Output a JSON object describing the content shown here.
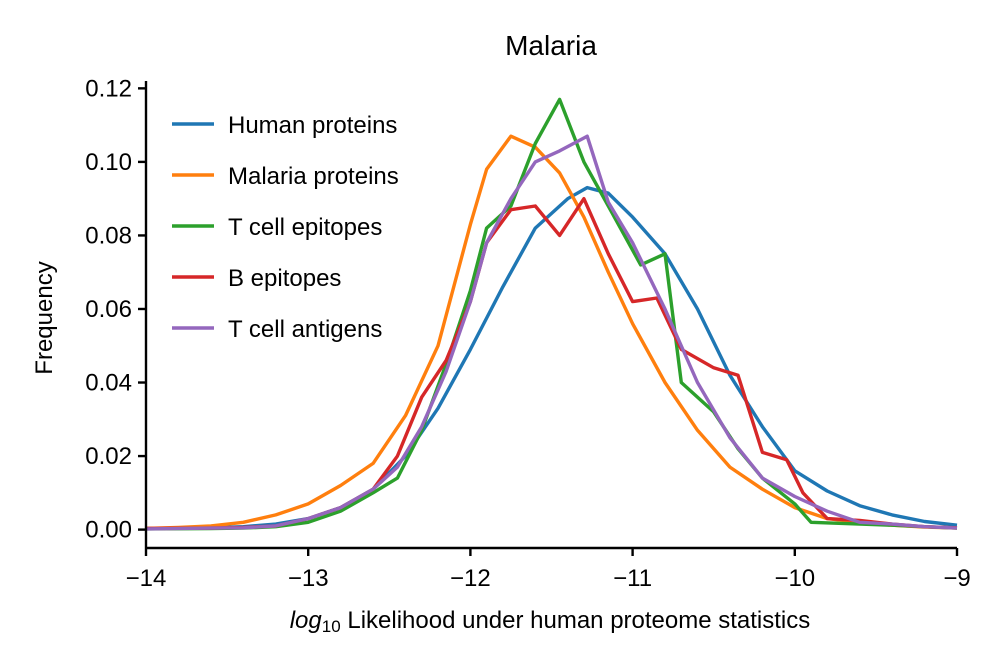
{
  "chart_data": {
    "type": "line",
    "title": "Malaria",
    "xlabel_var": "log",
    "xlabel_sub": "10",
    "xlabel_rest": " Likelihood under human proteome statistics",
    "ylabel": "Frequency",
    "xlim": [
      -14,
      -9
    ],
    "ylim": [
      -0.005,
      0.122
    ],
    "x_ticks": [
      -14,
      -13,
      -12,
      -11,
      -10,
      -9
    ],
    "x_tick_labels": [
      "−14",
      "−13",
      "−12",
      "−11",
      "−10",
      "−9"
    ],
    "y_ticks": [
      0.0,
      0.02,
      0.04,
      0.06,
      0.08,
      0.1,
      0.12
    ],
    "y_tick_labels": [
      "0.00",
      "0.02",
      "0.04",
      "0.06",
      "0.08",
      "0.10",
      "0.12"
    ],
    "grid": false,
    "legend_position": "top-left",
    "series": [
      {
        "name": "Human proteins",
        "color": "#1f77b4",
        "x": [
          -14.0,
          -13.8,
          -13.6,
          -13.4,
          -13.2,
          -13.0,
          -12.8,
          -12.6,
          -12.4,
          -12.2,
          -12.0,
          -11.8,
          -11.6,
          -11.4,
          -11.28,
          -11.15,
          -11.0,
          -10.8,
          -10.6,
          -10.4,
          -10.2,
          -10.0,
          -9.8,
          -9.6,
          -9.4,
          -9.2,
          -9.0
        ],
        "y": [
          0.0003,
          0.0004,
          0.0005,
          0.0008,
          0.0015,
          0.003,
          0.006,
          0.011,
          0.02,
          0.033,
          0.049,
          0.066,
          0.082,
          0.09,
          0.093,
          0.0915,
          0.085,
          0.075,
          0.06,
          0.042,
          0.028,
          0.016,
          0.0105,
          0.0065,
          0.004,
          0.0022,
          0.0012
        ]
      },
      {
        "name": "Malaria proteins",
        "color": "#ff7f0e",
        "x": [
          -14.0,
          -13.8,
          -13.6,
          -13.4,
          -13.2,
          -13.0,
          -12.8,
          -12.6,
          -12.4,
          -12.2,
          -12.0,
          -11.9,
          -11.75,
          -11.6,
          -11.45,
          -11.3,
          -11.15,
          -11.0,
          -10.8,
          -10.6,
          -10.4,
          -10.2,
          -10.0,
          -9.8,
          -9.6,
          -9.4,
          -9.2,
          -9.0
        ],
        "y": [
          0.0003,
          0.0006,
          0.001,
          0.002,
          0.004,
          0.007,
          0.012,
          0.018,
          0.031,
          0.05,
          0.083,
          0.098,
          0.107,
          0.104,
          0.097,
          0.085,
          0.07,
          0.056,
          0.04,
          0.027,
          0.017,
          0.011,
          0.006,
          0.003,
          0.002,
          0.0012,
          0.0007,
          0.0004
        ]
      },
      {
        "name": "T cell epitopes",
        "color": "#2ca02c",
        "x": [
          -14.0,
          -13.6,
          -13.4,
          -13.2,
          -13.0,
          -12.8,
          -12.6,
          -12.45,
          -12.3,
          -12.15,
          -12.0,
          -11.9,
          -11.75,
          -11.6,
          -11.45,
          -11.3,
          -11.15,
          -10.95,
          -10.8,
          -10.7,
          -10.5,
          -10.35,
          -10.2,
          -10.0,
          -9.9,
          -9.6,
          -9.4,
          -9.2,
          -9.0
        ],
        "y": [
          0.0002,
          0.0003,
          0.0004,
          0.0008,
          0.002,
          0.005,
          0.01,
          0.014,
          0.027,
          0.045,
          0.065,
          0.082,
          0.088,
          0.105,
          0.117,
          0.1,
          0.088,
          0.072,
          0.075,
          0.04,
          0.032,
          0.022,
          0.014,
          0.007,
          0.002,
          0.0015,
          0.0012,
          0.0008,
          0.0004
        ]
      },
      {
        "name": "B epitopes",
        "color": "#d62728",
        "x": [
          -14.0,
          -13.6,
          -13.4,
          -13.2,
          -13.0,
          -12.8,
          -12.6,
          -12.45,
          -12.3,
          -12.15,
          -12.0,
          -11.9,
          -11.75,
          -11.6,
          -11.45,
          -11.3,
          -11.15,
          -11.0,
          -10.85,
          -10.7,
          -10.5,
          -10.35,
          -10.2,
          -10.05,
          -9.95,
          -9.8,
          -9.6,
          -9.4,
          -9.2,
          -9.0
        ],
        "y": [
          0.0003,
          0.0004,
          0.0006,
          0.001,
          0.003,
          0.006,
          0.011,
          0.02,
          0.036,
          0.046,
          0.062,
          0.078,
          0.087,
          0.088,
          0.08,
          0.09,
          0.075,
          0.062,
          0.063,
          0.049,
          0.044,
          0.042,
          0.021,
          0.019,
          0.01,
          0.003,
          0.0025,
          0.0015,
          0.0008,
          0.0005
        ]
      },
      {
        "name": "T cell antigens",
        "color": "#9467bd",
        "x": [
          -14.0,
          -13.6,
          -13.4,
          -13.2,
          -13.0,
          -12.8,
          -12.6,
          -12.45,
          -12.3,
          -12.15,
          -12.0,
          -11.9,
          -11.75,
          -11.6,
          -11.45,
          -11.28,
          -11.15,
          -11.0,
          -10.8,
          -10.6,
          -10.4,
          -10.2,
          -10.0,
          -9.8,
          -9.6,
          -9.4,
          -9.2,
          -9.0
        ],
        "y": [
          0.0002,
          0.0004,
          0.0005,
          0.001,
          0.003,
          0.006,
          0.011,
          0.017,
          0.028,
          0.043,
          0.062,
          0.078,
          0.09,
          0.1,
          0.103,
          0.107,
          0.089,
          0.078,
          0.06,
          0.04,
          0.025,
          0.014,
          0.009,
          0.005,
          0.002,
          0.0015,
          0.0008,
          0.0004
        ]
      }
    ]
  }
}
